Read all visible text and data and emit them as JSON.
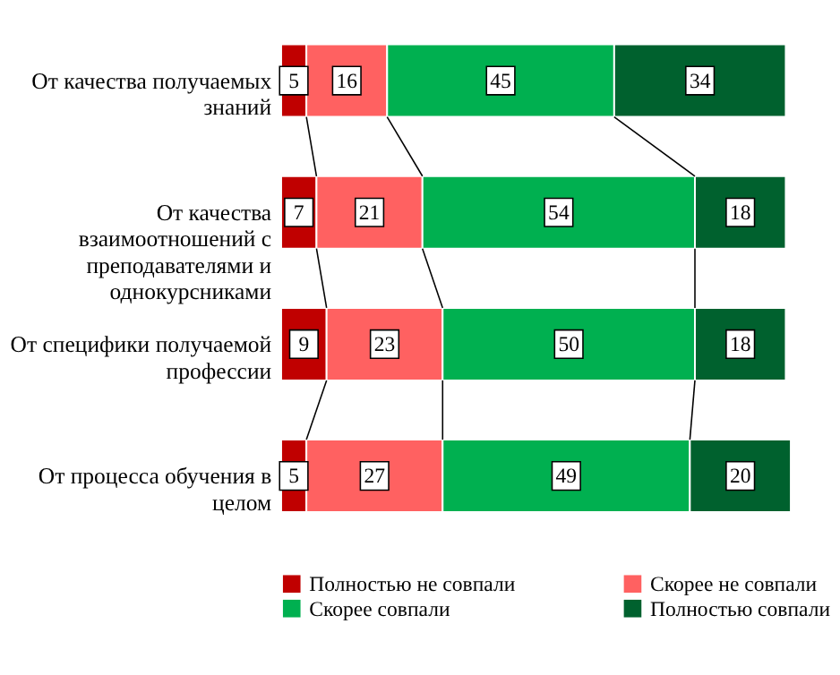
{
  "chart_data": {
    "type": "bar",
    "orientation": "horizontal",
    "stacked": true,
    "data_labels": true,
    "legend": "bottom",
    "grid": false,
    "categories": [
      "От качества получаемых знаний",
      "От качества взаимоотношений с преподавателями и однокурсниками",
      "От специфики получаемой профессии",
      "От процесса обучения в целом"
    ],
    "series": [
      {
        "name": "Полностью не совпали",
        "color": "#c00000",
        "values": [
          5,
          7,
          9,
          5
        ]
      },
      {
        "name": "Скорее не совпали",
        "color": "#ff6161",
        "values": [
          16,
          21,
          23,
          27
        ]
      },
      {
        "name": "Скорее совпали",
        "color": "#00b050",
        "values": [
          45,
          54,
          50,
          49
        ]
      },
      {
        "name": "Полностью совпали",
        "color": "#00612e",
        "values": [
          34,
          18,
          18,
          20
        ]
      }
    ]
  }
}
